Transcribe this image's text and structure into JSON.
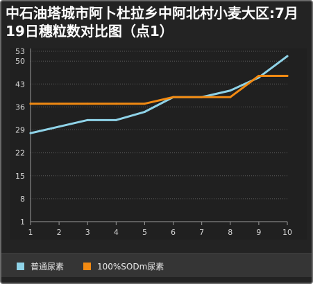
{
  "title": "中石油塔城市阿卜杜拉乡中阿北村小麦大区:7月19日穗粒数对比图（点1）",
  "chart_data": {
    "type": "line",
    "title": "中石油塔城市阿卜杜拉乡中阿北村小麦大区:7月19日穗粒数对比图（点1）",
    "xlabel": "",
    "ylabel": "",
    "x": [
      1,
      2,
      3,
      4,
      5,
      6,
      7,
      8,
      9,
      10
    ],
    "y_ticks": [
      1,
      8,
      15,
      22,
      29,
      36,
      43,
      50,
      53
    ],
    "ylim": [
      1,
      53
    ],
    "grid": true,
    "legend_position": "bottom",
    "series": [
      {
        "name": "普通尿素",
        "color": "#8fd3e8",
        "values": [
          28,
          30,
          32,
          32,
          34.5,
          39,
          39,
          41,
          45,
          51.5
        ]
      },
      {
        "name": "100%SODm尿素",
        "color": "#f28a12",
        "values": [
          37,
          37,
          37,
          37,
          37,
          39,
          39,
          39,
          45.5,
          45.5
        ]
      }
    ]
  }
}
